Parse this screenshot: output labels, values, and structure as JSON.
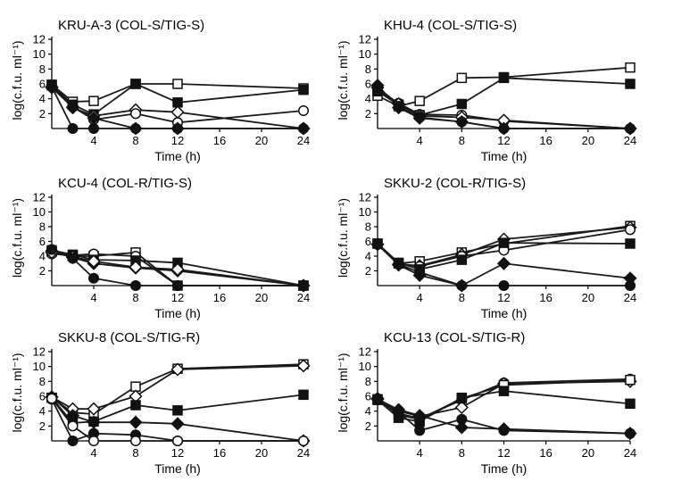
{
  "chart_data": [
    {
      "type": "line",
      "title": "KRU-A-3 (COL-S/TIG-S)",
      "xlabel": "Time (h)",
      "ylabel": "log(c.f.u. ml⁻¹)",
      "x_ticks": [
        4,
        8,
        12,
        16,
        20,
        24
      ],
      "y_ticks": [
        2,
        4,
        6,
        8,
        10,
        12
      ],
      "xlim": [
        0,
        24
      ],
      "ylim": [
        0,
        12
      ],
      "series": [
        {
          "marker": "square-open",
          "x": [
            0,
            2,
            4,
            8,
            12,
            24
          ],
          "y": [
            5.9,
            3.6,
            3.7,
            6.0,
            6.0,
            5.4
          ]
        },
        {
          "marker": "square-filled",
          "x": [
            0,
            2,
            4,
            8,
            12,
            24
          ],
          "y": [
            5.8,
            3.2,
            1.9,
            6.0,
            3.5,
            5.2
          ]
        },
        {
          "marker": "diamond-open",
          "x": [
            0,
            2,
            4,
            8,
            12,
            24
          ],
          "y": [
            5.6,
            2.8,
            1.7,
            2.5,
            2.2,
            0.0
          ]
        },
        {
          "marker": "circle-open",
          "x": [
            0,
            2,
            4,
            8,
            12,
            24
          ],
          "y": [
            5.7,
            2.9,
            1.2,
            2.0,
            0.8,
            2.4
          ]
        },
        {
          "marker": "diamond-filled",
          "x": [
            0,
            2,
            4,
            8,
            12,
            24
          ],
          "y": [
            5.5,
            2.9,
            1.4,
            0.0,
            0.0,
            0.0
          ]
        },
        {
          "marker": "circle-filled",
          "x": [
            0,
            2,
            4,
            8,
            12,
            24
          ],
          "y": [
            5.6,
            0.0,
            0.0,
            0.0,
            0.0,
            0.0
          ]
        }
      ]
    },
    {
      "type": "line",
      "title": "KHU-4 (COL-S/TIG-S)",
      "xlabel": "Time (h)",
      "ylabel": "log(c.f.u. ml⁻¹)",
      "x_ticks": [
        4,
        8,
        12,
        16,
        20,
        24
      ],
      "y_ticks": [
        2,
        4,
        6,
        8,
        10,
        12
      ],
      "xlim": [
        0,
        24
      ],
      "ylim": [
        0,
        12
      ],
      "series": [
        {
          "marker": "square-open",
          "x": [
            0,
            2,
            4,
            8,
            12,
            24
          ],
          "y": [
            4.4,
            3.0,
            3.7,
            6.8,
            6.9,
            8.2
          ]
        },
        {
          "marker": "square-filled",
          "x": [
            0,
            2,
            4,
            8,
            12,
            24
          ],
          "y": [
            5.0,
            3.2,
            1.8,
            3.3,
            6.8,
            6.0
          ]
        },
        {
          "marker": "circle-open",
          "x": [
            0,
            2,
            4,
            8,
            12,
            24
          ],
          "y": [
            5.2,
            3.4,
            1.9,
            1.8,
            1.0,
            0.0
          ]
        },
        {
          "marker": "diamond-open",
          "x": [
            0,
            2,
            4,
            8,
            12,
            24
          ],
          "y": [
            5.5,
            3.3,
            1.7,
            1.5,
            1.1,
            0.0
          ]
        },
        {
          "marker": "circle-filled",
          "x": [
            0,
            2,
            4,
            8,
            12,
            24
          ],
          "y": [
            5.4,
            3.0,
            1.5,
            0.9,
            0.0,
            0.0
          ]
        },
        {
          "marker": "diamond-filled",
          "x": [
            0,
            2,
            4,
            8,
            12,
            24
          ],
          "y": [
            5.8,
            2.8,
            1.4,
            0.9,
            0.0,
            0.0
          ]
        }
      ]
    },
    {
      "type": "line",
      "title": "KCU-4 (COL-R/TIG-S)",
      "xlabel": "Time (h)",
      "ylabel": "log(c.f.u. ml⁻¹)",
      "x_ticks": [
        4,
        8,
        12,
        16,
        20,
        24
      ],
      "y_ticks": [
        2,
        4,
        6,
        8,
        10,
        12
      ],
      "xlim": [
        0,
        24
      ],
      "ylim": [
        0,
        12
      ],
      "series": [
        {
          "marker": "square-open",
          "x": [
            0,
            2,
            4,
            8,
            12,
            24
          ],
          "y": [
            4.6,
            4.0,
            4.0,
            4.5,
            0.0,
            0.0
          ]
        },
        {
          "marker": "circle-open",
          "x": [
            0,
            2,
            4,
            8,
            12,
            24
          ],
          "y": [
            4.3,
            4.1,
            4.3,
            4.0,
            0.0,
            0.0
          ]
        },
        {
          "marker": "square-filled",
          "x": [
            0,
            2,
            4,
            8,
            12,
            24
          ],
          "y": [
            4.8,
            4.2,
            3.5,
            3.4,
            3.1,
            0.0
          ]
        },
        {
          "marker": "diamond-filled",
          "x": [
            0,
            2,
            4,
            8,
            12,
            24
          ],
          "y": [
            4.7,
            3.8,
            3.0,
            2.4,
            2.0,
            0.0
          ]
        },
        {
          "marker": "diamond-open",
          "x": [
            0,
            2,
            4,
            8,
            12,
            24
          ],
          "y": [
            4.5,
            3.9,
            3.3,
            2.5,
            2.2,
            0.0
          ]
        },
        {
          "marker": "circle-filled",
          "x": [
            0,
            2,
            4,
            8,
            12,
            24
          ],
          "y": [
            4.9,
            3.7,
            1.0,
            0.0,
            0.0,
            0.0
          ]
        }
      ]
    },
    {
      "type": "line",
      "title": "SKKU-2 (COL-R/TIG-S)",
      "xlabel": "Time (h)",
      "ylabel": "log(c.f.u. ml⁻¹)",
      "x_ticks": [
        4,
        8,
        12,
        16,
        20,
        24
      ],
      "y_ticks": [
        2,
        4,
        6,
        8,
        10,
        12
      ],
      "xlim": [
        0,
        24
      ],
      "ylim": [
        0,
        12
      ],
      "series": [
        {
          "marker": "square-open",
          "x": [
            0,
            2,
            4,
            8,
            12,
            24
          ],
          "y": [
            5.7,
            3.0,
            3.3,
            4.5,
            5.7,
            8.1
          ]
        },
        {
          "marker": "diamond-open",
          "x": [
            0,
            2,
            4,
            8,
            12,
            24
          ],
          "y": [
            5.6,
            2.9,
            2.7,
            4.2,
            6.3,
            7.9
          ]
        },
        {
          "marker": "circle-open",
          "x": [
            0,
            2,
            4,
            8,
            12,
            24
          ],
          "y": [
            5.6,
            3.0,
            2.6,
            4.0,
            4.8,
            7.6
          ]
        },
        {
          "marker": "square-filled",
          "x": [
            0,
            2,
            4,
            8,
            12,
            24
          ],
          "y": [
            5.7,
            3.1,
            2.2,
            3.5,
            5.8,
            5.7
          ]
        },
        {
          "marker": "diamond-filled",
          "x": [
            0,
            2,
            4,
            8,
            12,
            24
          ],
          "y": [
            5.6,
            2.8,
            1.4,
            0.0,
            3.0,
            1.0
          ]
        },
        {
          "marker": "circle-filled",
          "x": [
            0,
            2,
            4,
            8,
            12,
            24
          ],
          "y": [
            5.6,
            2.9,
            1.8,
            0.0,
            0.0,
            0.0
          ]
        }
      ]
    },
    {
      "type": "line",
      "title": "SKKU-8 (COL-S/TIG-R)",
      "xlabel": "Time (h)",
      "ylabel": "log(c.f.u. ml⁻¹)",
      "x_ticks": [
        4,
        8,
        12,
        16,
        20,
        24
      ],
      "y_ticks": [
        2,
        4,
        6,
        8,
        10,
        12
      ],
      "xlim": [
        0,
        24
      ],
      "ylim": [
        0,
        12
      ],
      "series": [
        {
          "marker": "square-open",
          "x": [
            0,
            2,
            4,
            8,
            12,
            24
          ],
          "y": [
            5.8,
            3.8,
            3.6,
            7.3,
            9.7,
            10.3
          ]
        },
        {
          "marker": "diamond-open",
          "x": [
            0,
            2,
            4,
            8,
            12,
            24
          ],
          "y": [
            5.9,
            4.3,
            4.3,
            6.0,
            9.6,
            10.1
          ]
        },
        {
          "marker": "square-filled",
          "x": [
            0,
            2,
            4,
            8,
            12,
            24
          ],
          "y": [
            5.8,
            2.4,
            2.6,
            4.8,
            4.1,
            6.2
          ]
        },
        {
          "marker": "diamond-filled",
          "x": [
            0,
            2,
            4,
            8,
            12,
            24
          ],
          "y": [
            5.9,
            3.4,
            2.5,
            2.5,
            2.3,
            0.0
          ]
        },
        {
          "marker": "circle-filled",
          "x": [
            0,
            2,
            4,
            8,
            12,
            24
          ],
          "y": [
            5.6,
            0.0,
            1.0,
            0.8,
            0.0,
            0.0
          ]
        },
        {
          "marker": "circle-open",
          "x": [
            0,
            2,
            4,
            8,
            12,
            24
          ],
          "y": [
            5.7,
            2.0,
            0.0,
            0.0,
            0.0,
            0.0
          ]
        }
      ]
    },
    {
      "type": "line",
      "title": "KCU-13 (COL-S/TIG-R)",
      "xlabel": "Time (h)",
      "ylabel": "log(c.f.u. ml⁻¹)",
      "x_ticks": [
        4,
        8,
        12,
        16,
        20,
        24
      ],
      "y_ticks": [
        2,
        4,
        6,
        8,
        10,
        12
      ],
      "xlim": [
        0,
        24
      ],
      "ylim": [
        0,
        12
      ],
      "series": [
        {
          "marker": "circle-open",
          "x": [
            0,
            2,
            4,
            8,
            12,
            24
          ],
          "y": [
            5.6,
            3.7,
            3.0,
            5.5,
            7.8,
            8.3
          ]
        },
        {
          "marker": "diamond-open",
          "x": [
            0,
            2,
            4,
            8,
            12,
            24
          ],
          "y": [
            5.7,
            4.0,
            3.3,
            4.5,
            7.7,
            8.0
          ]
        },
        {
          "marker": "square-open",
          "x": [
            0,
            2,
            4,
            8,
            12,
            24
          ],
          "y": [
            5.6,
            3.5,
            2.9,
            5.7,
            7.5,
            8.2
          ]
        },
        {
          "marker": "square-filled",
          "x": [
            0,
            2,
            4,
            8,
            12,
            24
          ],
          "y": [
            5.5,
            3.1,
            2.6,
            5.8,
            6.7,
            5.0
          ]
        },
        {
          "marker": "circle-filled",
          "x": [
            0,
            2,
            4,
            8,
            12,
            24
          ],
          "y": [
            5.7,
            3.9,
            1.4,
            2.9,
            1.4,
            1.0
          ]
        },
        {
          "marker": "diamond-filled",
          "x": [
            0,
            2,
            4,
            8,
            12,
            24
          ],
          "y": [
            5.6,
            4.2,
            3.4,
            1.8,
            1.6,
            1.0
          ]
        }
      ]
    }
  ]
}
